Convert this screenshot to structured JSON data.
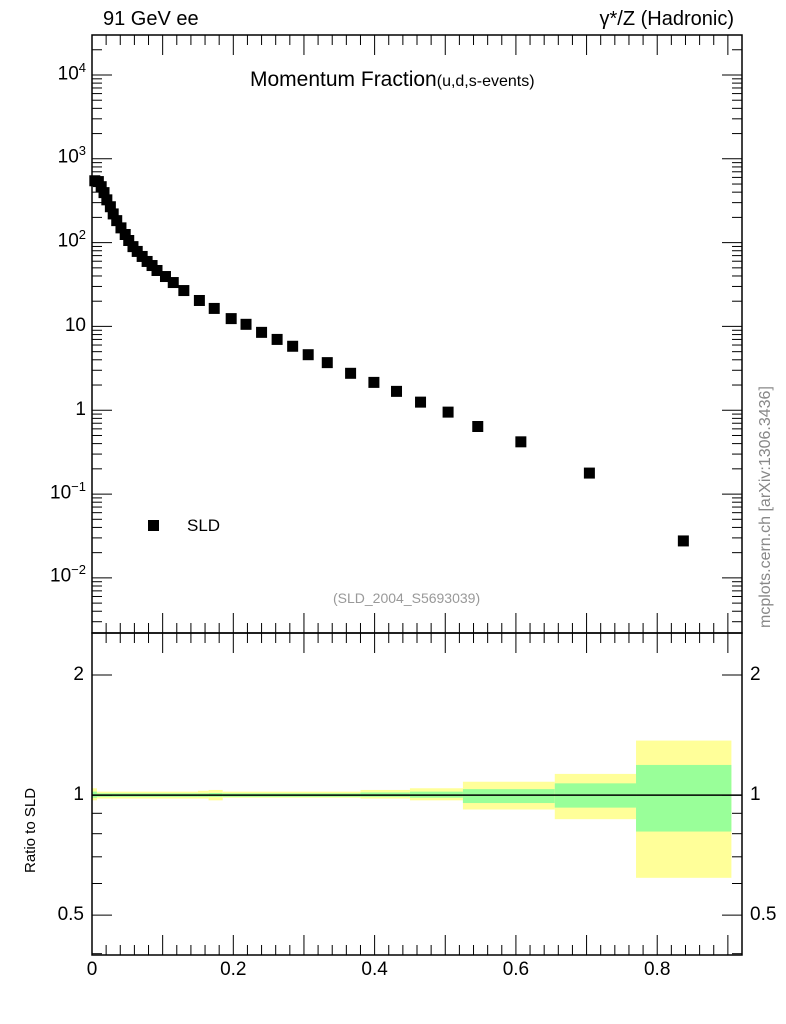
{
  "header": {
    "left": "91 GeV ee",
    "right": "γ*/Z (Hadronic)"
  },
  "side_label": "mcplots.cern.ch [arXiv:1306.3436]",
  "chart_data": [
    {
      "type": "scatter",
      "title": "Momentum Fraction",
      "subtitle": "(u,d,s-events)",
      "yscale": "log",
      "xlim": [
        0,
        0.92
      ],
      "ylim": [
        0.0022,
        30000
      ],
      "ytick_labels": [
        {
          "v": 10000,
          "b": "10",
          "e": "4"
        },
        {
          "v": 1000,
          "b": "10",
          "e": "3"
        },
        {
          "v": 100,
          "b": "10",
          "e": "2"
        },
        {
          "v": 10,
          "b": "10",
          "e": ""
        },
        {
          "v": 1,
          "b": "1",
          "e": ""
        },
        {
          "v": 0.1,
          "b": "10",
          "e": "−1"
        },
        {
          "v": 0.01,
          "b": "10",
          "e": "−2"
        }
      ],
      "legend": {
        "label": "SLD",
        "placement": "bottom-left"
      },
      "annotation": "(SLD_2004_S5693039)",
      "series": [
        {
          "name": "SLD",
          "color": "#000000",
          "x": [
            0.004,
            0.009,
            0.013,
            0.017,
            0.021,
            0.026,
            0.03,
            0.035,
            0.041,
            0.047,
            0.052,
            0.058,
            0.064,
            0.071,
            0.078,
            0.085,
            0.092,
            0.104,
            0.115,
            0.13,
            0.152,
            0.173,
            0.197,
            0.218,
            0.24,
            0.262,
            0.284,
            0.306,
            0.333,
            0.366,
            0.399,
            0.431,
            0.465,
            0.504,
            0.546,
            0.607,
            0.704,
            0.837
          ],
          "y": [
            547,
            535,
            465,
            395,
            324,
            268,
            220,
            183,
            150,
            125,
            106,
            89.6,
            78.5,
            68.4,
            59.6,
            53.3,
            46.5,
            39.4,
            33.4,
            26.8,
            20.4,
            16.4,
            12.4,
            10.6,
            8.5,
            7.0,
            5.8,
            4.6,
            3.7,
            2.76,
            2.15,
            1.68,
            1.25,
            0.95,
            0.64,
            0.42,
            0.178,
            0.0276
          ]
        }
      ]
    },
    {
      "type": "area",
      "ylabel": "Ratio to SLD",
      "yscale": "log",
      "xlim": [
        0,
        0.92
      ],
      "ylim": [
        0.397,
        2.55
      ],
      "xtick_labels": [
        "0",
        "0.2",
        "0.4",
        "0.6",
        "0.8"
      ],
      "xticks": [
        0,
        0.2,
        0.4,
        0.6,
        0.8
      ],
      "ytick_labels": [
        "0.5",
        "1",
        "2"
      ],
      "yticks": [
        0.5,
        1,
        2
      ],
      "bands": [
        {
          "x0": 0,
          "x1": 0.007,
          "green": [
            0.985,
            1.02
          ],
          "yellow": [
            0.97,
            1.04
          ]
        },
        {
          "x0": 0.007,
          "x1": 0.15,
          "green": [
            0.99,
            1.01
          ],
          "yellow": [
            0.98,
            1.02
          ]
        },
        {
          "x0": 0.15,
          "x1": 0.165,
          "green": [
            0.99,
            1.01
          ],
          "yellow": [
            0.98,
            1.025
          ]
        },
        {
          "x0": 0.165,
          "x1": 0.185,
          "green": [
            0.99,
            1.012
          ],
          "yellow": [
            0.97,
            1.03
          ]
        },
        {
          "x0": 0.185,
          "x1": 0.38,
          "green": [
            0.99,
            1.01
          ],
          "yellow": [
            0.985,
            1.02
          ]
        },
        {
          "x0": 0.38,
          "x1": 0.45,
          "green": [
            0.99,
            1.015
          ],
          "yellow": [
            0.98,
            1.03
          ]
        },
        {
          "x0": 0.45,
          "x1": 0.525,
          "green": [
            0.985,
            1.02
          ],
          "yellow": [
            0.97,
            1.04
          ]
        },
        {
          "x0": 0.525,
          "x1": 0.655,
          "green": [
            0.955,
            1.035
          ],
          "yellow": [
            0.92,
            1.08
          ]
        },
        {
          "x0": 0.655,
          "x1": 0.77,
          "green": [
            0.93,
            1.07
          ],
          "yellow": [
            0.87,
            1.13
          ]
        },
        {
          "x0": 0.77,
          "x1": 0.905,
          "green": [
            0.81,
            1.19
          ],
          "yellow": [
            0.62,
            1.37
          ]
        }
      ],
      "colors": {
        "green": "#99ff99",
        "yellow": "#ffff99"
      }
    }
  ]
}
